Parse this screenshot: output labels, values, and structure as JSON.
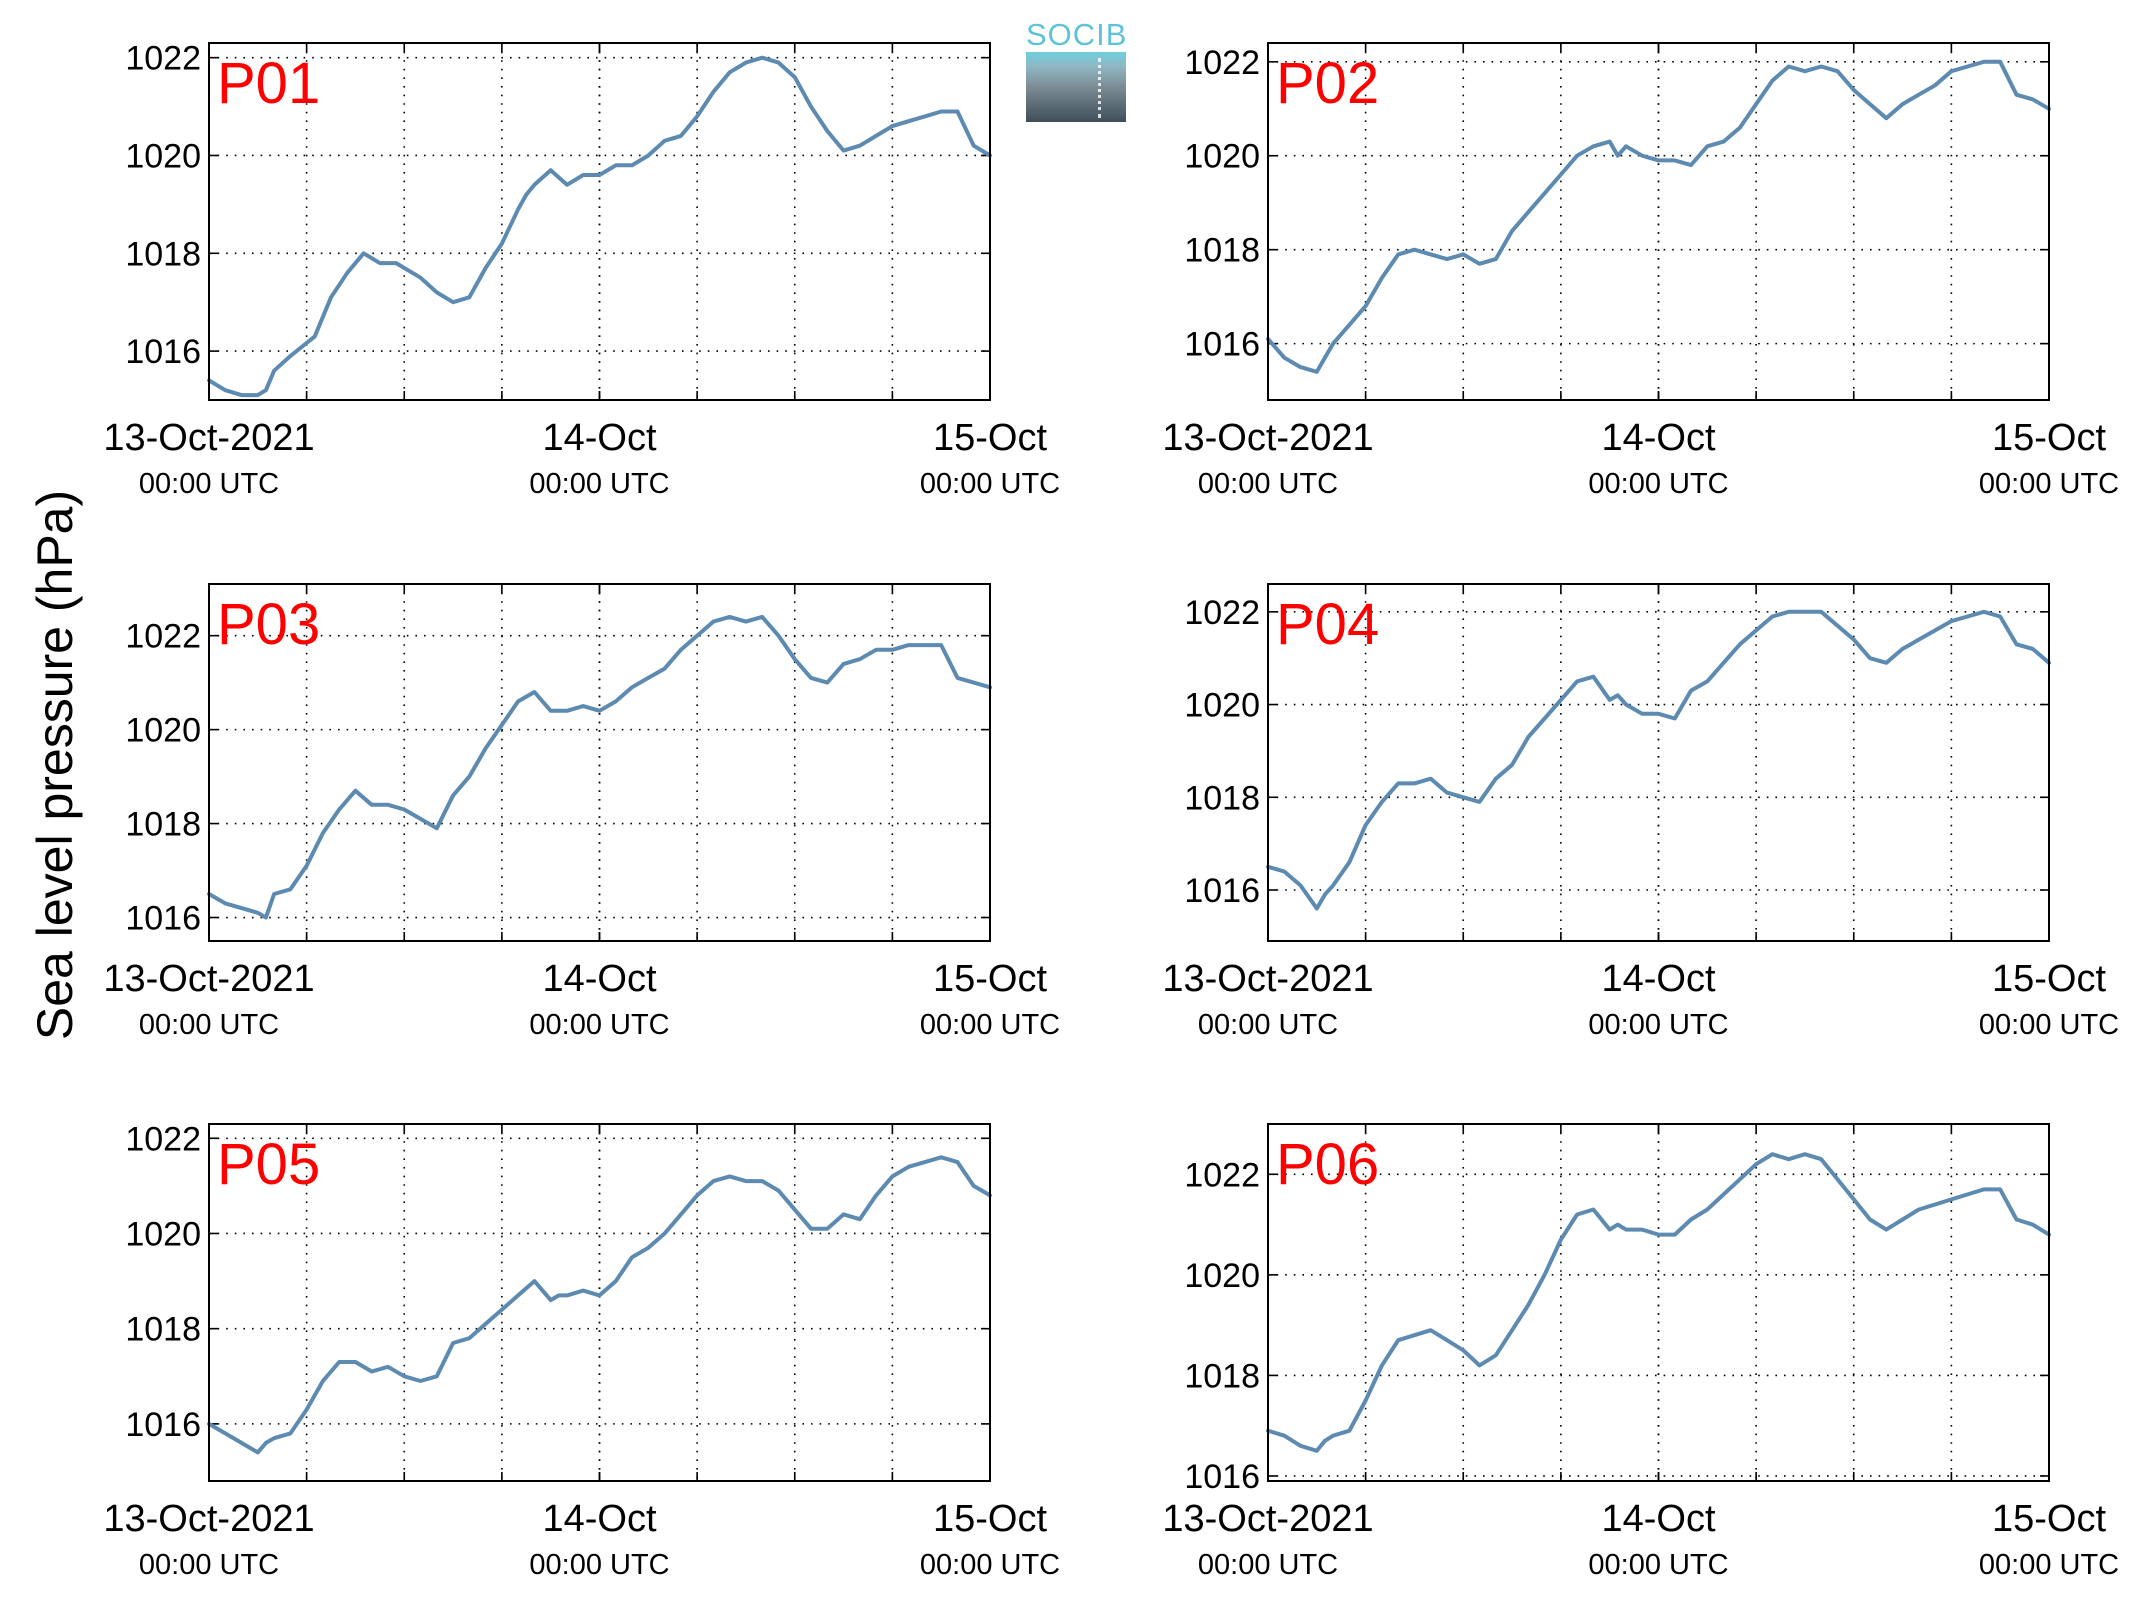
{
  "y_axis_label": "Sea level pressure (hPa)",
  "logo": {
    "text": "SOCIB",
    "name": "socib-logo"
  },
  "colors": {
    "line": "#5d8ab0",
    "panel_label": "#ff0000",
    "grid": "#000000"
  },
  "chart_data": [
    {
      "type": "line",
      "label": "P01",
      "xlim": [
        0,
        48
      ],
      "xticks": [
        {
          "x": 0,
          "line1": "13-Oct-2021",
          "line2": "00:00 UTC"
        },
        {
          "x": 24,
          "line1": "14-Oct",
          "line2": "00:00 UTC"
        },
        {
          "x": 48,
          "line1": "15-Oct",
          "line2": "00:00 UTC"
        }
      ],
      "xgrid": [
        6,
        12,
        18,
        24,
        30,
        36,
        42
      ],
      "ylim": [
        1015,
        1022.3
      ],
      "yticks": [
        1016,
        1018,
        1020,
        1022
      ],
      "grid": true,
      "series": [
        {
          "x": [
            0,
            1,
            2,
            3,
            3.5,
            4,
            5,
            6.5,
            7.5,
            8.5,
            9.5,
            10.5,
            11.5,
            12.5,
            13,
            14,
            15,
            16,
            17,
            18,
            19,
            19.5,
            20,
            21,
            22,
            23,
            24,
            25,
            26,
            27,
            28,
            29,
            30,
            31,
            32,
            33,
            34,
            35,
            36,
            37,
            38,
            39,
            40,
            41,
            42,
            43,
            44,
            45,
            46,
            47,
            48
          ],
          "y": [
            1015.4,
            1015.2,
            1015.1,
            1015.1,
            1015.2,
            1015.6,
            1015.9,
            1016.3,
            1017.1,
            1017.6,
            1018.0,
            1017.8,
            1017.8,
            1017.6,
            1017.5,
            1017.2,
            1017.0,
            1017.1,
            1017.7,
            1018.2,
            1018.9,
            1019.2,
            1019.4,
            1019.7,
            1019.4,
            1019.6,
            1019.6,
            1019.8,
            1019.8,
            1020.0,
            1020.3,
            1020.4,
            1020.8,
            1021.3,
            1021.7,
            1021.9,
            1022.0,
            1021.9,
            1021.6,
            1021.0,
            1020.5,
            1020.1,
            1020.2,
            1020.4,
            1020.6,
            1020.7,
            1020.8,
            1020.9,
            1020.9,
            1020.2,
            1020.0
          ]
        }
      ]
    },
    {
      "type": "line",
      "label": "P02",
      "xlim": [
        0,
        48
      ],
      "xticks": [
        {
          "x": 0,
          "line1": "13-Oct-2021",
          "line2": "00:00 UTC"
        },
        {
          "x": 24,
          "line1": "14-Oct",
          "line2": "00:00 UTC"
        },
        {
          "x": 48,
          "line1": "15-Oct",
          "line2": "00:00 UTC"
        }
      ],
      "xgrid": [
        6,
        12,
        18,
        24,
        30,
        36,
        42
      ],
      "ylim": [
        1014.8,
        1022.4
      ],
      "yticks": [
        1016,
        1018,
        1020,
        1022
      ],
      "grid": true,
      "series": [
        {
          "x": [
            0,
            1,
            2,
            3,
            3.5,
            4,
            5,
            6,
            7,
            8,
            9,
            10,
            11,
            12,
            13,
            14,
            15,
            16,
            17,
            18,
            19,
            20,
            21,
            21.5,
            22,
            23,
            24,
            25,
            26,
            27,
            28,
            29,
            30,
            31,
            32,
            33,
            34,
            35,
            36,
            37,
            38,
            39,
            40,
            41,
            42,
            43,
            44,
            45,
            46,
            47,
            48
          ],
          "y": [
            1016.1,
            1015.7,
            1015.5,
            1015.4,
            1015.7,
            1016.0,
            1016.4,
            1016.8,
            1017.4,
            1017.9,
            1018.0,
            1017.9,
            1017.8,
            1017.9,
            1017.7,
            1017.8,
            1018.4,
            1018.8,
            1019.2,
            1019.6,
            1020.0,
            1020.2,
            1020.3,
            1020.0,
            1020.2,
            1020.0,
            1019.9,
            1019.9,
            1019.8,
            1020.2,
            1020.3,
            1020.6,
            1021.1,
            1021.6,
            1021.9,
            1021.8,
            1021.9,
            1021.8,
            1021.4,
            1021.1,
            1020.8,
            1021.1,
            1021.3,
            1021.5,
            1021.8,
            1021.9,
            1022.0,
            1022.0,
            1021.3,
            1021.2,
            1021.0
          ]
        }
      ]
    },
    {
      "type": "line",
      "label": "P03",
      "xlim": [
        0,
        48
      ],
      "xticks": [
        {
          "x": 0,
          "line1": "13-Oct-2021",
          "line2": "00:00 UTC"
        },
        {
          "x": 24,
          "line1": "14-Oct",
          "line2": "00:00 UTC"
        },
        {
          "x": 48,
          "line1": "15-Oct",
          "line2": "00:00 UTC"
        }
      ],
      "xgrid": [
        6,
        12,
        18,
        24,
        30,
        36,
        42
      ],
      "ylim": [
        1015.5,
        1023.1
      ],
      "yticks": [
        1016,
        1018,
        1020,
        1022
      ],
      "grid": true,
      "series": [
        {
          "x": [
            0,
            1,
            2,
            3,
            3.5,
            4,
            5,
            6,
            7,
            8,
            9,
            10,
            11,
            12,
            13,
            14,
            15,
            16,
            17,
            18,
            19,
            20,
            21,
            21.5,
            22,
            23,
            24,
            25,
            26,
            27,
            28,
            29,
            30,
            31,
            32,
            33,
            34,
            35,
            36,
            37,
            38,
            39,
            40,
            41,
            42,
            43,
            44,
            45,
            46,
            47,
            48
          ],
          "y": [
            1016.5,
            1016.3,
            1016.2,
            1016.1,
            1016.0,
            1016.5,
            1016.6,
            1017.1,
            1017.8,
            1018.3,
            1018.7,
            1018.4,
            1018.4,
            1018.3,
            1018.1,
            1017.9,
            1018.6,
            1019.0,
            1019.6,
            1020.1,
            1020.6,
            1020.8,
            1020.4,
            1020.4,
            1020.4,
            1020.5,
            1020.4,
            1020.6,
            1020.9,
            1021.1,
            1021.3,
            1021.7,
            1022.0,
            1022.3,
            1022.4,
            1022.3,
            1022.4,
            1022.0,
            1021.5,
            1021.1,
            1021.0,
            1021.4,
            1021.5,
            1021.7,
            1021.7,
            1021.8,
            1021.8,
            1021.8,
            1021.1,
            1021.0,
            1020.9
          ]
        }
      ]
    },
    {
      "type": "line",
      "label": "P04",
      "xlim": [
        0,
        48
      ],
      "xticks": [
        {
          "x": 0,
          "line1": "13-Oct-2021",
          "line2": "00:00 UTC"
        },
        {
          "x": 24,
          "line1": "14-Oct",
          "line2": "00:00 UTC"
        },
        {
          "x": 48,
          "line1": "15-Oct",
          "line2": "00:00 UTC"
        }
      ],
      "xgrid": [
        6,
        12,
        18,
        24,
        30,
        36,
        42
      ],
      "ylim": [
        1014.9,
        1022.6
      ],
      "yticks": [
        1016,
        1018,
        1020,
        1022
      ],
      "grid": true,
      "series": [
        {
          "x": [
            0,
            1,
            2,
            3,
            3.5,
            4,
            5,
            6,
            7,
            8,
            9,
            10,
            11,
            12,
            13,
            14,
            15,
            16,
            17,
            18,
            19,
            20,
            21,
            21.5,
            22,
            23,
            24,
            25,
            26,
            27,
            28,
            29,
            30,
            31,
            32,
            33,
            34,
            35,
            36,
            37,
            38,
            39,
            40,
            41,
            42,
            43,
            44,
            45,
            46,
            47,
            48
          ],
          "y": [
            1016.5,
            1016.4,
            1016.1,
            1015.6,
            1015.9,
            1016.1,
            1016.6,
            1017.4,
            1017.9,
            1018.3,
            1018.3,
            1018.4,
            1018.1,
            1018.0,
            1017.9,
            1018.4,
            1018.7,
            1019.3,
            1019.7,
            1020.1,
            1020.5,
            1020.6,
            1020.1,
            1020.2,
            1020.0,
            1019.8,
            1019.8,
            1019.7,
            1020.3,
            1020.5,
            1020.9,
            1021.3,
            1021.6,
            1021.9,
            1022.0,
            1022.0,
            1022.0,
            1021.7,
            1021.4,
            1021.0,
            1020.9,
            1021.2,
            1021.4,
            1021.6,
            1021.8,
            1021.9,
            1022.0,
            1021.9,
            1021.3,
            1021.2,
            1020.9
          ]
        }
      ]
    },
    {
      "type": "line",
      "label": "P05",
      "xlim": [
        0,
        48
      ],
      "xticks": [
        {
          "x": 0,
          "line1": "13-Oct-2021",
          "line2": "00:00 UTC"
        },
        {
          "x": 24,
          "line1": "14-Oct",
          "line2": "00:00 UTC"
        },
        {
          "x": 48,
          "line1": "15-Oct",
          "line2": "00:00 UTC"
        }
      ],
      "xgrid": [
        6,
        12,
        18,
        24,
        30,
        36,
        42
      ],
      "ylim": [
        1014.8,
        1022.3
      ],
      "yticks": [
        1016,
        1018,
        1020,
        1022
      ],
      "grid": true,
      "series": [
        {
          "x": [
            0,
            1,
            2,
            3,
            3.5,
            4,
            5,
            6,
            7,
            8,
            9,
            10,
            11,
            12,
            13,
            14,
            15,
            16,
            17,
            18,
            19,
            20,
            21,
            21.5,
            22,
            23,
            24,
            25,
            26,
            27,
            28,
            29,
            30,
            31,
            32,
            33,
            34,
            35,
            36,
            37,
            38,
            39,
            40,
            41,
            42,
            43,
            44,
            45,
            46,
            47,
            48
          ],
          "y": [
            1016.0,
            1015.8,
            1015.6,
            1015.4,
            1015.6,
            1015.7,
            1015.8,
            1016.3,
            1016.9,
            1017.3,
            1017.3,
            1017.1,
            1017.2,
            1017.0,
            1016.9,
            1017.0,
            1017.7,
            1017.8,
            1018.1,
            1018.4,
            1018.7,
            1019.0,
            1018.6,
            1018.7,
            1018.7,
            1018.8,
            1018.7,
            1019.0,
            1019.5,
            1019.7,
            1020.0,
            1020.4,
            1020.8,
            1021.1,
            1021.2,
            1021.1,
            1021.1,
            1020.9,
            1020.5,
            1020.1,
            1020.1,
            1020.4,
            1020.3,
            1020.8,
            1021.2,
            1021.4,
            1021.5,
            1021.6,
            1021.5,
            1021.0,
            1020.8
          ]
        }
      ]
    },
    {
      "type": "line",
      "label": "P06",
      "xlim": [
        0,
        48
      ],
      "xticks": [
        {
          "x": 0,
          "line1": "13-Oct-2021",
          "line2": "00:00 UTC"
        },
        {
          "x": 24,
          "line1": "14-Oct",
          "line2": "00:00 UTC"
        },
        {
          "x": 48,
          "line1": "15-Oct",
          "line2": "00:00 UTC"
        }
      ],
      "xgrid": [
        6,
        12,
        18,
        24,
        30,
        36,
        42
      ],
      "ylim": [
        1015.9,
        1023.0
      ],
      "yticks": [
        1016,
        1018,
        1020,
        1022
      ],
      "grid": true,
      "series": [
        {
          "x": [
            0,
            1,
            2,
            3,
            3.5,
            4,
            5,
            6,
            7,
            8,
            9,
            10,
            11,
            12,
            13,
            14,
            15,
            16,
            17,
            18,
            19,
            20,
            21,
            21.5,
            22,
            23,
            24,
            25,
            26,
            27,
            28,
            29,
            30,
            31,
            32,
            33,
            34,
            35,
            36,
            37,
            38,
            39,
            40,
            41,
            42,
            43,
            44,
            45,
            46,
            47,
            48
          ],
          "y": [
            1016.9,
            1016.8,
            1016.6,
            1016.5,
            1016.7,
            1016.8,
            1016.9,
            1017.5,
            1018.2,
            1018.7,
            1018.8,
            1018.9,
            1018.7,
            1018.5,
            1018.2,
            1018.4,
            1018.9,
            1019.4,
            1020.0,
            1020.7,
            1021.2,
            1021.3,
            1020.9,
            1021.0,
            1020.9,
            1020.9,
            1020.8,
            1020.8,
            1021.1,
            1021.3,
            1021.6,
            1021.9,
            1022.2,
            1022.4,
            1022.3,
            1022.4,
            1022.3,
            1021.9,
            1021.5,
            1021.1,
            1020.9,
            1021.1,
            1021.3,
            1021.4,
            1021.5,
            1021.6,
            1021.7,
            1021.7,
            1021.1,
            1021.0,
            1020.8
          ]
        }
      ]
    }
  ]
}
